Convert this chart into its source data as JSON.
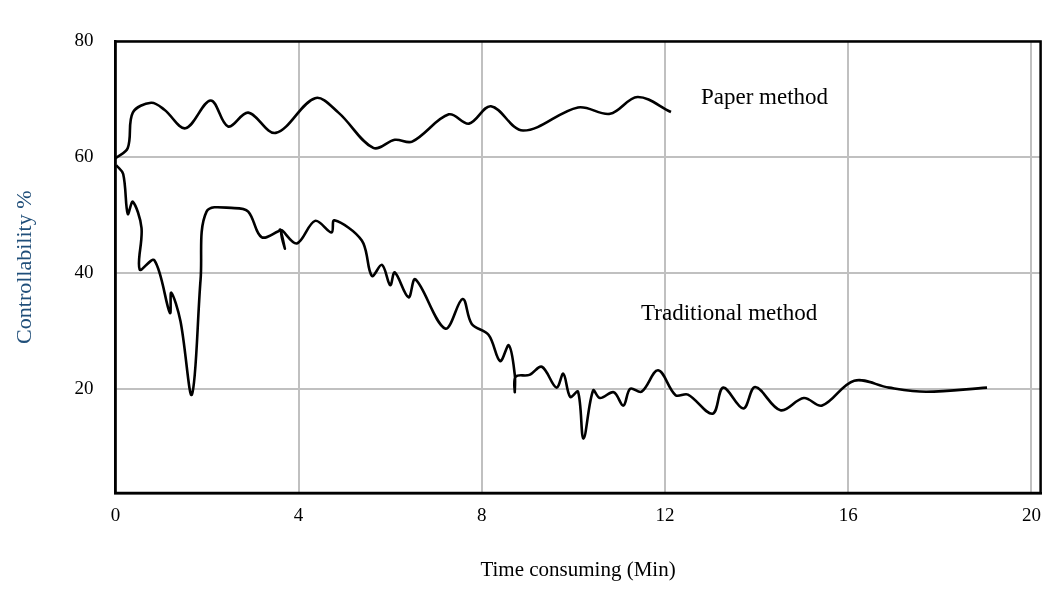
{
  "chart_data": {
    "type": "line",
    "xlabel": "Time consuming (Min)",
    "ylabel": "Controllability %",
    "xlim": [
      0,
      20.2
    ],
    "xticks": [
      0,
      4,
      8,
      12,
      16,
      20
    ],
    "ylim": [
      2,
      80
    ],
    "yticks": [
      20,
      40,
      60,
      80
    ],
    "grid": true,
    "legend": false,
    "marker": "none",
    "line_style": "solid",
    "series": [
      {
        "name": "Paper method",
        "color": "#000000",
        "x": [
          0,
          0.27,
          0.38,
          0.78,
          1.07,
          1.53,
          2.08,
          2.46,
          2.9,
          3.5,
          4.36,
          4.87,
          5.63,
          6.1,
          6.48,
          7.28,
          7.72,
          8.2,
          8.9,
          10.1,
          10.8,
          11.4,
          12.13
        ],
        "values": [
          59.8,
          61.6,
          67.7,
          69.4,
          68.2,
          65,
          69.8,
          65.3,
          67.7,
          64.2,
          70.2,
          67.7,
          61.6,
          63,
          62.7,
          67.4,
          65.8,
          68.8,
          64.6,
          68.6,
          67.5,
          70.4,
          67.8
        ]
      },
      {
        "name": "Traditional method",
        "color": "#000000",
        "x": [
          0.02,
          0.17,
          0.27,
          0.38,
          0.57,
          0.53,
          0.85,
          1.19,
          1.22,
          1.42,
          1.67,
          1.86,
          1.99,
          2.6,
          2.9,
          3.19,
          3.56,
          3.6,
          3.7,
          3.62,
          3.96,
          4.36,
          4.72,
          4.78,
          5.38,
          5.6,
          5.82,
          6.0,
          6.1,
          6.4,
          6.55,
          7.2,
          7.58,
          7.78,
          8.15,
          8.4,
          8.59,
          8.72,
          8.72,
          8.74,
          9.04,
          9.31,
          9.63,
          9.78,
          9.93,
          10.1,
          10.22,
          10.43,
          10.58,
          10.88,
          11.09,
          11.24,
          11.49,
          11.85,
          12.23,
          12.5,
          13.04,
          13.27,
          13.71,
          13.97,
          14.52,
          15.03,
          15.43,
          16.13,
          16.89,
          17.7,
          19.03
        ],
        "values": [
          58.6,
          57.1,
          50.2,
          52.3,
          47.8,
          40.6,
          42.2,
          33.1,
          36.6,
          31.7,
          19,
          38.9,
          50.6,
          51.2,
          50.6,
          46.2,
          47.2,
          47.5,
          44.2,
          47.4,
          45.1,
          49,
          47,
          49.1,
          45.6,
          39.5,
          41.4,
          37.9,
          40.1,
          35.8,
          38.9,
          30.4,
          35.5,
          31.2,
          29.3,
          24.8,
          27.5,
          22.4,
          19.4,
          22.1,
          22.4,
          23.8,
          20.2,
          22.6,
          18.6,
          19.5,
          11.4,
          19.7,
          18.4,
          19.4,
          17.1,
          20,
          19.5,
          23.2,
          18.9,
          19,
          15.7,
          20.2,
          16.6,
          20.3,
          16.3,
          18.4,
          17.1,
          21.4,
          20.2,
          19.5,
          20.2
        ]
      }
    ]
  }
}
